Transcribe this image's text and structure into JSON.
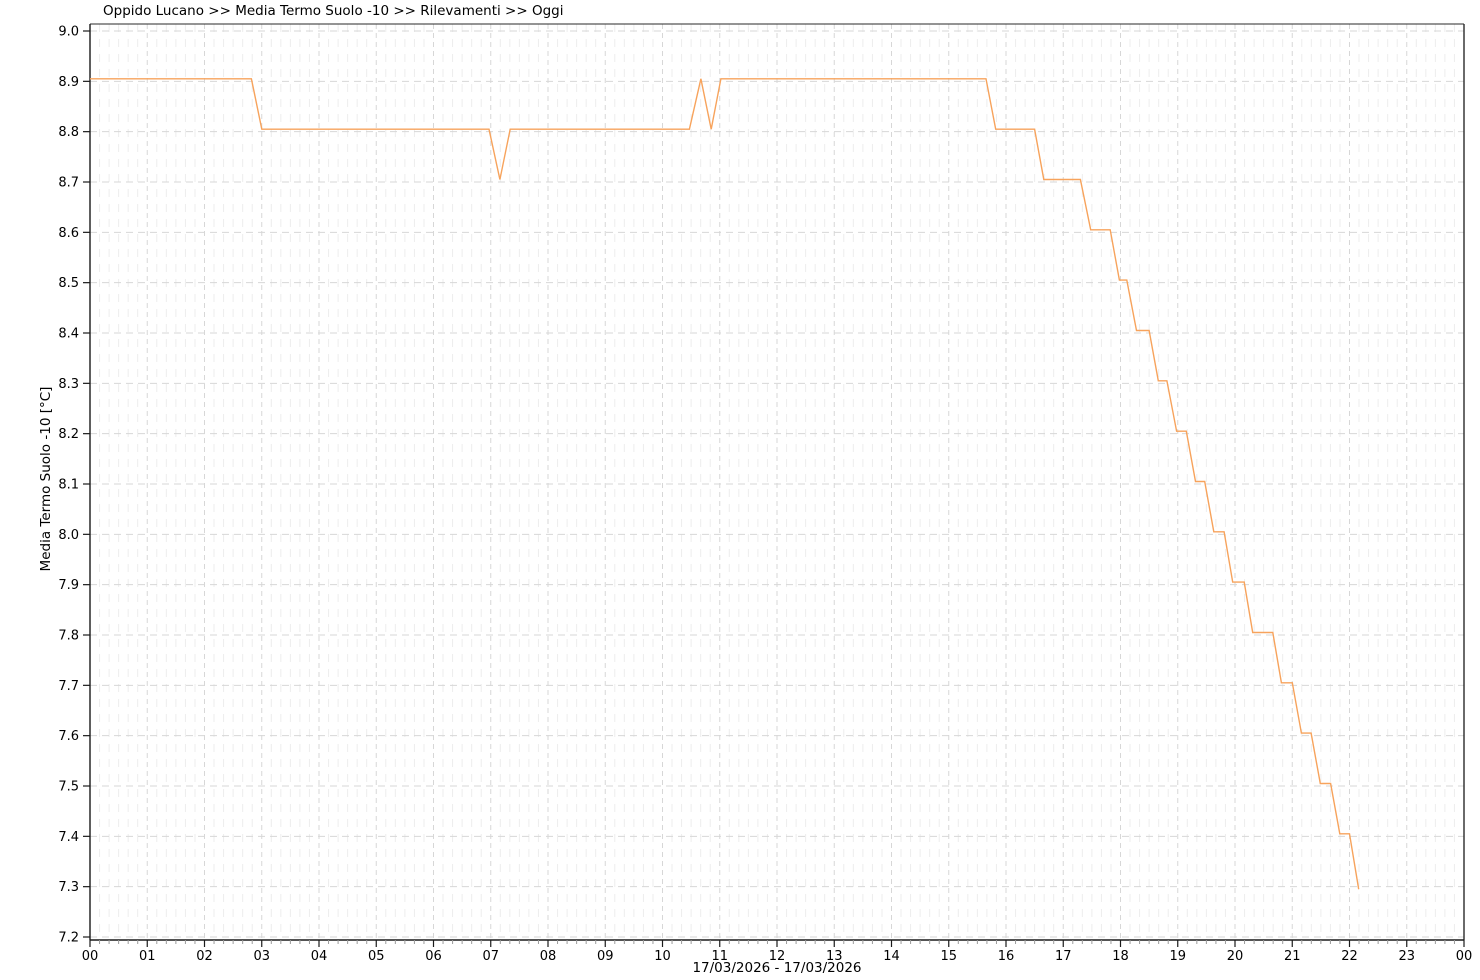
{
  "chart_data": {
    "type": "line",
    "title": "Oppido Lucano >> Media Termo Suolo -10 >> Rilevamenti >> Oggi",
    "ylabel": "Media Termo Suolo -10 [°C]",
    "xlabel": "17/03/2026 - 17/03/2026",
    "date_range_label": "17/03/2026 - 17/03/2026",
    "x_tick_labels": [
      "00",
      "01",
      "02",
      "03",
      "04",
      "05",
      "06",
      "07",
      "08",
      "09",
      "10",
      "11",
      "12",
      "13",
      "14",
      "15",
      "16",
      "17",
      "18",
      "19",
      "20",
      "21",
      "22",
      "23",
      "00"
    ],
    "x_minor_per_hour": 6,
    "xlim_hours": [
      0,
      24
    ],
    "y_ticks": [
      "9.0",
      "8.9",
      "8.8",
      "8.7",
      "8.6",
      "8.5",
      "8.4",
      "8.3",
      "8.2",
      "8.1",
      "8.0",
      "7.9",
      "7.8",
      "7.7",
      "7.6",
      "7.5",
      "7.4",
      "7.3",
      "7.2"
    ],
    "ylim": [
      7.2,
      9.0
    ],
    "grid": {
      "on": true,
      "major_color": "#d7d7d7",
      "minor_color": "#ededed",
      "legend_position": "none"
    },
    "axis_color": "#1a1a1a",
    "series": [
      {
        "name": "Media Termo Suolo -10",
        "color": "#f7a35c",
        "points_hour_value": [
          [
            0.0,
            8.905
          ],
          [
            2.82,
            8.905
          ],
          [
            3.0,
            8.805
          ],
          [
            6.97,
            8.805
          ],
          [
            7.16,
            8.705
          ],
          [
            7.34,
            8.805
          ],
          [
            10.47,
            8.805
          ],
          [
            10.67,
            8.905
          ],
          [
            10.85,
            8.805
          ],
          [
            11.02,
            8.905
          ],
          [
            15.65,
            8.905
          ],
          [
            15.82,
            8.805
          ],
          [
            16.5,
            8.805
          ],
          [
            16.66,
            8.705
          ],
          [
            17.3,
            8.705
          ],
          [
            17.48,
            8.605
          ],
          [
            17.82,
            8.605
          ],
          [
            17.98,
            8.505
          ],
          [
            18.11,
            8.505
          ],
          [
            18.28,
            8.405
          ],
          [
            18.5,
            8.405
          ],
          [
            18.66,
            8.305
          ],
          [
            18.81,
            8.305
          ],
          [
            18.98,
            8.205
          ],
          [
            19.15,
            8.205
          ],
          [
            19.31,
            8.105
          ],
          [
            19.47,
            8.105
          ],
          [
            19.63,
            8.005
          ],
          [
            19.81,
            8.005
          ],
          [
            19.96,
            7.905
          ],
          [
            20.16,
            7.905
          ],
          [
            20.31,
            7.805
          ],
          [
            20.66,
            7.805
          ],
          [
            20.81,
            7.705
          ],
          [
            21.0,
            7.705
          ],
          [
            21.16,
            7.605
          ],
          [
            21.33,
            7.605
          ],
          [
            21.49,
            7.505
          ],
          [
            21.67,
            7.505
          ],
          [
            21.83,
            7.405
          ],
          [
            22.0,
            7.405
          ],
          [
            22.16,
            7.295
          ]
        ]
      }
    ]
  }
}
